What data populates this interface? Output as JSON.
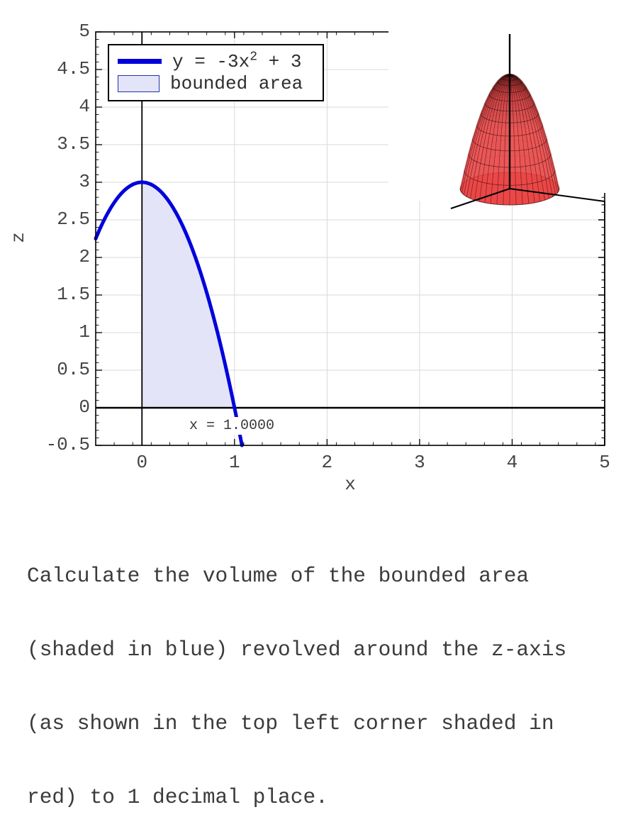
{
  "figure": {
    "legend": {
      "series_prefix": "y = -3x",
      "series_sup": "2",
      "series_suffix": " + 3",
      "area_label": "bounded area"
    },
    "annotation": {
      "text": "x = 1.0000"
    },
    "axes": {
      "xlabel": "x",
      "ylabel": "z"
    }
  },
  "chart_data": {
    "type": "line",
    "title": "",
    "xlabel": "x",
    "ylabel": "z",
    "xlim": [
      -0.5,
      5
    ],
    "ylim": [
      -0.5,
      5
    ],
    "grid": true,
    "x_ticks": [
      0,
      1,
      2,
      3,
      4,
      5
    ],
    "x_tick_labels": [
      "0",
      "1",
      "2",
      "3",
      "4",
      "5"
    ],
    "y_ticks": [
      -0.5,
      0,
      0.5,
      1,
      1.5,
      2,
      2.5,
      3,
      3.5,
      4,
      4.5,
      5
    ],
    "y_tick_labels": [
      "-0.5",
      "0",
      "0.5",
      "1",
      "1.5",
      "2",
      "2.5",
      "3",
      "3.5",
      "4",
      "4.5",
      "5"
    ],
    "x_minor_step": 0.2,
    "y_minor_step": 0.1,
    "series": [
      {
        "name": "y = -3x^2 + 3",
        "coefficients": {
          "a": -3,
          "c": 3
        },
        "x_draw_range": [
          -0.5,
          1.08
        ],
        "color": "#0000dd",
        "key_points": [
          [
            -0.5,
            2.25
          ],
          [
            0,
            3
          ],
          [
            0.5,
            2.25
          ],
          [
            1,
            0
          ]
        ],
        "apex": [
          0,
          3
        ],
        "x_intercept": 1.0
      }
    ],
    "shaded_region": {
      "label": "bounded area",
      "x_range": [
        0,
        1
      ],
      "bounds": "0 <= x <= 1, 0 <= z <= -3x^2 + 3",
      "fill": "#e4e4f8"
    },
    "annotation": {
      "text": "x = 1.0000",
      "x": 1.0
    },
    "inset_3d": {
      "description": "solid of revolution: paraboloid z = 3 - 3(x^2 + y^2) rotated around the z-axis",
      "surface_color": "#e83232",
      "base_color": "#f67d7d",
      "mesh_color": "#1a0000"
    },
    "colors": {
      "curve": "#0000dd",
      "region_fill": "#e4e4f8",
      "grid": "#d9d9d9",
      "axis": "#000000",
      "tick_text": "#454545"
    }
  },
  "question": {
    "lines": [
      "Calculate the volume of the bounded area",
      "(shaded in blue) revolved around the z-axis",
      "(as shown in the top left corner shaded in",
      "red) to 1 decimal place."
    ]
  }
}
